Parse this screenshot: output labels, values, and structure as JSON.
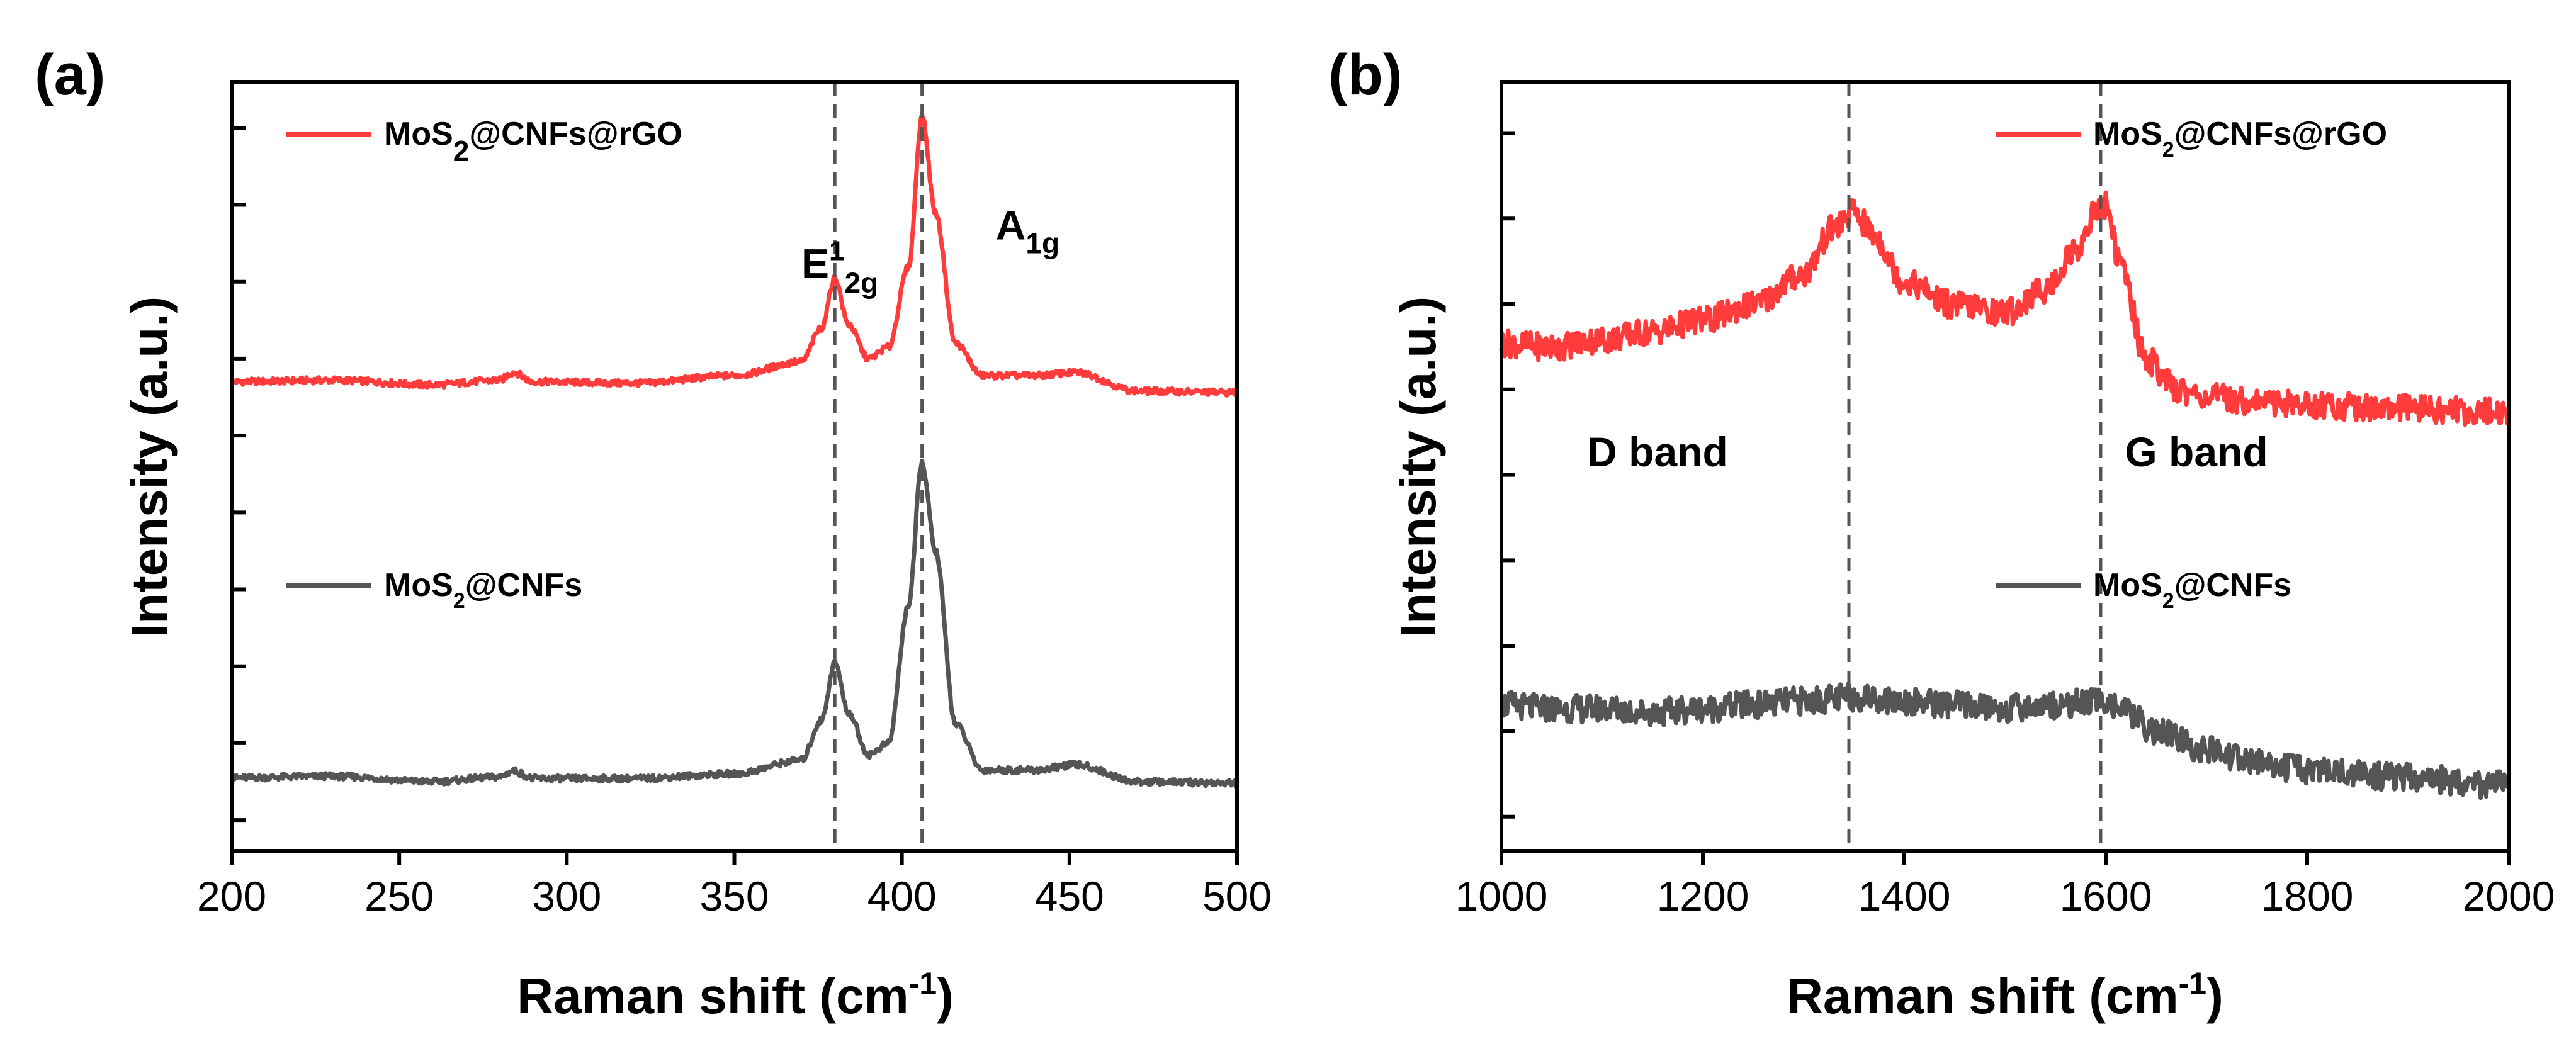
{
  "figure": {
    "panel_labels": [
      "(a)",
      "(b)"
    ]
  },
  "chart_data": [
    {
      "panel": "(a)",
      "type": "line",
      "xlabel": "Raman shift (cm-1)",
      "xlabel_main": "Raman shift (cm",
      "xlabel_sup": "-1",
      "xlabel_close": ")",
      "ylabel": "Intensity (a.u.)",
      "xlim": [
        200,
        500
      ],
      "ylim": [
        0,
        1
      ],
      "xticks": [
        200,
        250,
        300,
        350,
        400,
        450,
        500
      ],
      "y_tick_count": 10,
      "reference_lines": [
        380,
        406
      ],
      "annotations": [
        {
          "main": "E",
          "sup": "1",
          "sub": "2g",
          "x": 370,
          "y": 0.745
        },
        {
          "main": "A",
          "sup": "",
          "sub": "1g",
          "x": 428,
          "y": 0.795
        }
      ],
      "series": [
        {
          "name": "MoS2@CNFs@rGO",
          "label_main": "MoS",
          "label_sub": "2",
          "label_rest": "@CNFs@rGO",
          "color": "#ff3b3b",
          "x": [
            200,
            230,
            260,
            280,
            284,
            290,
            320,
            350,
            370,
            376,
            380,
            384,
            390,
            396,
            402,
            406,
            410,
            416,
            424,
            440,
            452,
            470,
            500
          ],
          "y": [
            0.61,
            0.612,
            0.606,
            0.612,
            0.622,
            0.61,
            0.608,
            0.618,
            0.636,
            0.68,
            0.745,
            0.685,
            0.64,
            0.655,
            0.76,
            0.955,
            0.83,
            0.66,
            0.618,
            0.618,
            0.622,
            0.598,
            0.596
          ]
        },
        {
          "name": "MoS2@CNFs",
          "label_main": "MoS",
          "label_sub": "2",
          "label_rest": "@CNFs",
          "color": "#555555",
          "x": [
            200,
            230,
            260,
            280,
            284,
            290,
            320,
            350,
            370,
            376,
            380,
            384,
            390,
            396,
            402,
            406,
            410,
            416,
            424,
            440,
            452,
            470,
            500
          ],
          "y": [
            0.095,
            0.097,
            0.09,
            0.096,
            0.104,
            0.094,
            0.094,
            0.1,
            0.118,
            0.17,
            0.245,
            0.18,
            0.125,
            0.14,
            0.32,
            0.505,
            0.39,
            0.165,
            0.105,
            0.105,
            0.112,
            0.09,
            0.088
          ]
        }
      ],
      "legend": {
        "placement": "left"
      }
    },
    {
      "panel": "(b)",
      "type": "line",
      "xlabel": "Raman shift (cm-1)",
      "xlabel_main": "Raman shift (cm",
      "xlabel_sup": "-1",
      "xlabel_close": ")",
      "ylabel": "Intensity (a.u.)",
      "xlim": [
        1000,
        2000
      ],
      "ylim": [
        0,
        1
      ],
      "xticks": [
        1000,
        1200,
        1400,
        1600,
        1800,
        2000
      ],
      "y_tick_count": 9,
      "reference_lines": [
        1345,
        1595
      ],
      "annotations": [
        {
          "main": "D band",
          "x": 1155,
          "y": 0.5
        },
        {
          "main": "G band",
          "x": 1690,
          "y": 0.5
        }
      ],
      "series": [
        {
          "name": "MoS2@CNFs@rGO",
          "label_main": "MoS",
          "label_sub": "2",
          "label_rest": "@CNFs@rGO",
          "color": "#ff3b3b",
          "x": [
            1000,
            1050,
            1100,
            1150,
            1200,
            1250,
            1300,
            1330,
            1350,
            1370,
            1400,
            1450,
            1500,
            1540,
            1570,
            1590,
            1600,
            1615,
            1640,
            1670,
            1700,
            1750,
            1800,
            1900,
            2000
          ],
          "y": [
            0.66,
            0.655,
            0.665,
            0.675,
            0.69,
            0.71,
            0.75,
            0.81,
            0.83,
            0.8,
            0.74,
            0.71,
            0.7,
            0.73,
            0.78,
            0.83,
            0.84,
            0.76,
            0.64,
            0.6,
            0.59,
            0.585,
            0.58,
            0.575,
            0.57
          ]
        },
        {
          "name": "MoS2@CNFs",
          "label_main": "MoS",
          "label_sub": "2",
          "label_rest": "@CNFs",
          "color": "#555555",
          "x": [
            1000,
            1050,
            1100,
            1150,
            1200,
            1250,
            1300,
            1350,
            1400,
            1450,
            1500,
            1550,
            1600,
            1620,
            1650,
            1700,
            1750,
            1800,
            1900,
            2000
          ],
          "y": [
            0.19,
            0.185,
            0.185,
            0.18,
            0.185,
            0.19,
            0.195,
            0.2,
            0.195,
            0.19,
            0.185,
            0.19,
            0.195,
            0.18,
            0.155,
            0.13,
            0.115,
            0.105,
            0.095,
            0.085
          ]
        }
      ],
      "legend": {
        "placement": "top-right"
      }
    }
  ]
}
